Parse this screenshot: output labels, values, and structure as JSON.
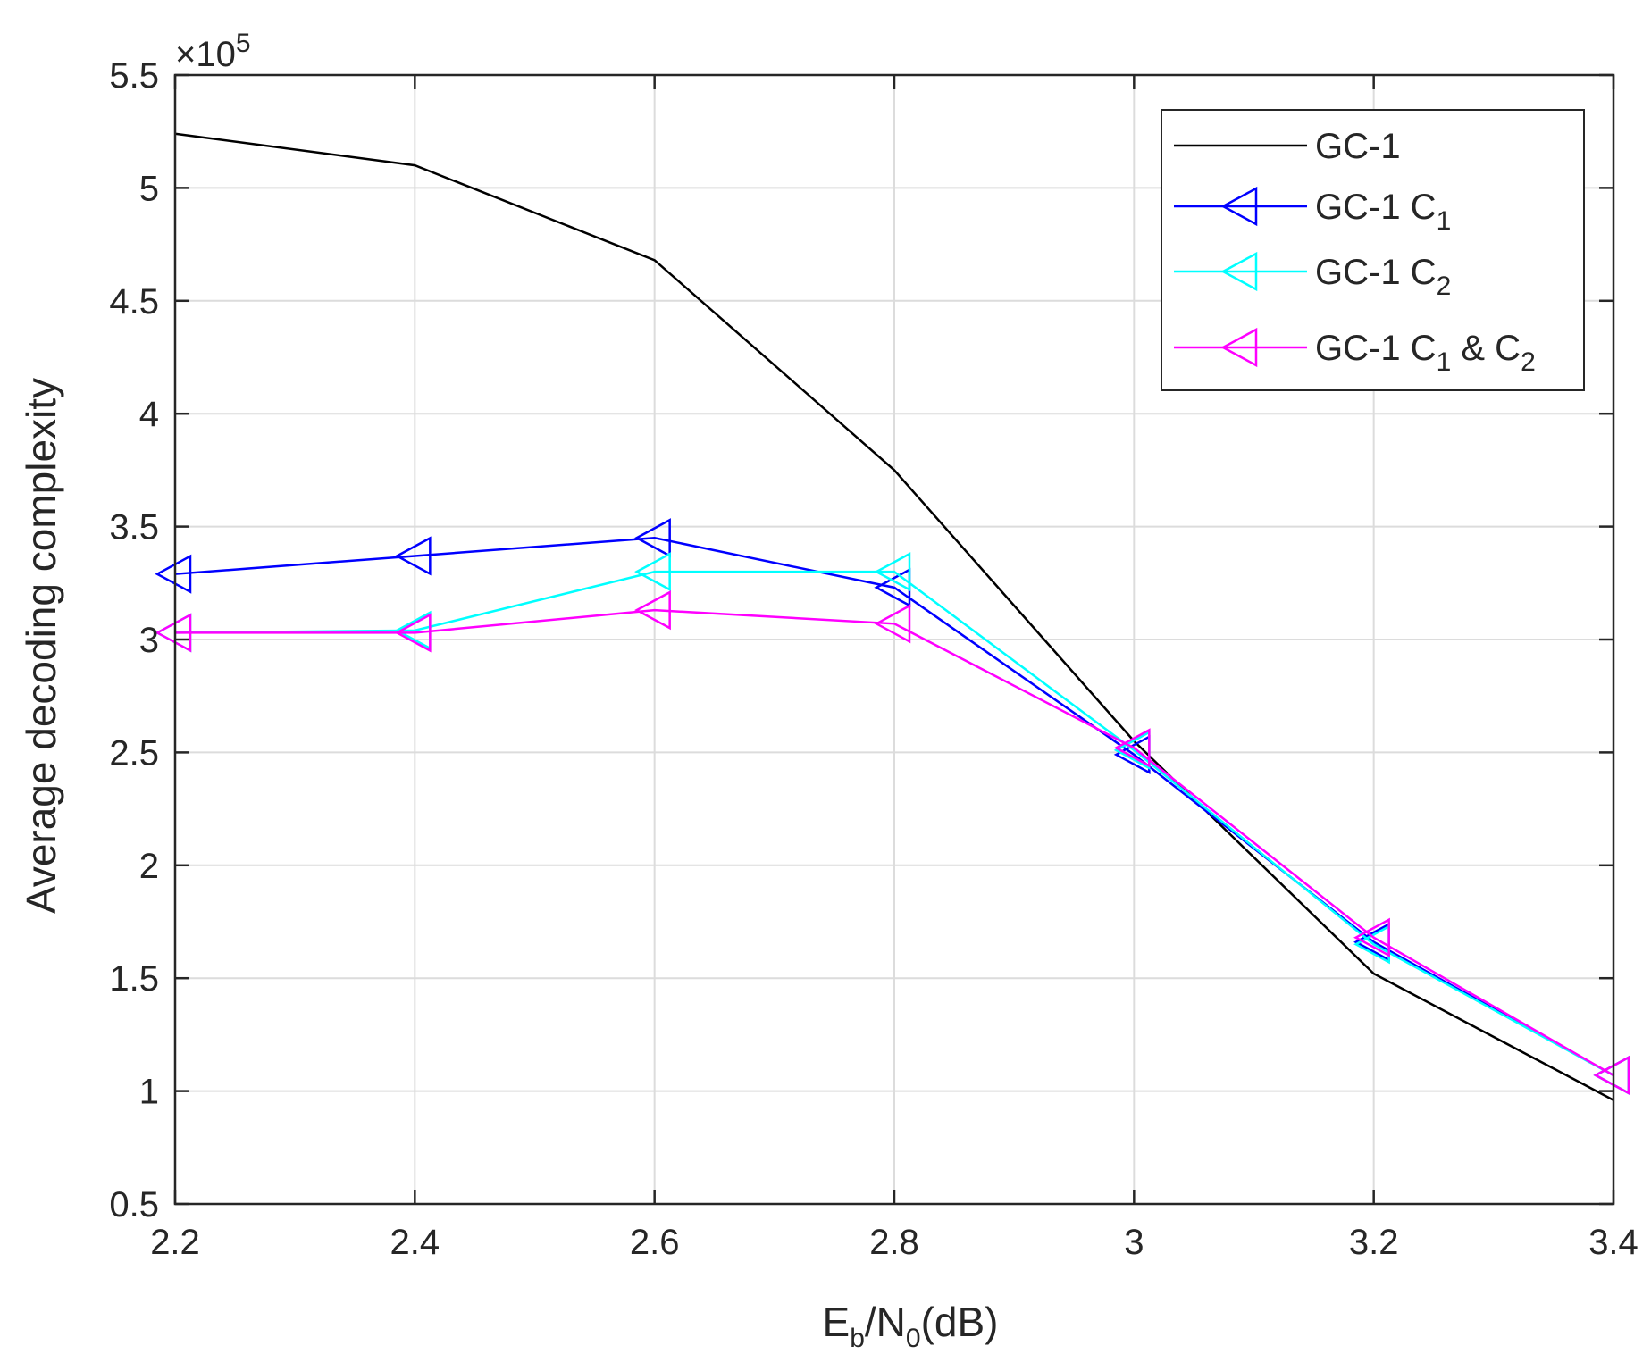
{
  "chart_data": {
    "type": "line",
    "title": "",
    "xlabel": {
      "main": "E",
      "sub1": "b",
      "mid": "/N",
      "sub2": "0",
      "tail": "(dB)"
    },
    "ylabel": "Average decoding complexity",
    "y_multiplier": {
      "prefix": "×10",
      "exponent": "5"
    },
    "xlim": [
      2.2,
      3.4
    ],
    "ylim": [
      0.5,
      5.5
    ],
    "xticks": [
      2.2,
      2.4,
      2.6,
      2.8,
      3,
      3.2,
      3.4
    ],
    "xtick_labels": [
      "2.2",
      "2.4",
      "2.6",
      "2.8",
      "3",
      "3.2",
      "3.4"
    ],
    "yticks": [
      0.5,
      1,
      1.5,
      2,
      2.5,
      3,
      3.5,
      4,
      4.5,
      5,
      5.5
    ],
    "ytick_labels": [
      "0.5",
      "1",
      "1.5",
      "2",
      "2.5",
      "3",
      "3.5",
      "4",
      "4.5",
      "5",
      "5.5"
    ],
    "grid": true,
    "legend_position": "top-right",
    "x": [
      2.2,
      2.4,
      2.6,
      2.8,
      3.0,
      3.2,
      3.4
    ],
    "series": [
      {
        "name": "GC-1",
        "label": {
          "main": "GC-1",
          "parts": []
        },
        "color": "#000000",
        "marker": "none",
        "values": [
          5.24,
          5.1,
          4.68,
          3.75,
          2.55,
          1.52,
          0.96
        ]
      },
      {
        "name": "GC-1 C1",
        "label": {
          "main": "GC-1 C",
          "parts": [
            {
              "t": "1",
              "sub": true
            }
          ]
        },
        "color": "#0000ff",
        "marker": "triangle-left",
        "values": [
          3.29,
          3.37,
          3.45,
          3.23,
          2.49,
          1.66,
          1.07
        ]
      },
      {
        "name": "GC-1 C2",
        "label": {
          "main": "GC-1 C",
          "parts": [
            {
              "t": "2",
              "sub": true
            }
          ]
        },
        "color": "#00ffff",
        "marker": "triangle-left",
        "values": [
          3.03,
          3.04,
          3.3,
          3.3,
          2.51,
          1.65,
          1.07
        ]
      },
      {
        "name": "GC-1 C1 & C2",
        "label": {
          "main": "GC-1 C",
          "parts": [
            {
              "t": "1",
              "sub": true
            },
            {
              "t": " & C",
              "sub": false
            },
            {
              "t": "2",
              "sub": true
            }
          ]
        },
        "color": "#ff00ff",
        "marker": "triangle-left",
        "values": [
          3.03,
          3.03,
          3.13,
          3.07,
          2.52,
          1.68,
          1.07
        ]
      }
    ]
  },
  "colors": {
    "axis": "#262626",
    "grid": "#dcdcdc",
    "background": "#ffffff"
  }
}
